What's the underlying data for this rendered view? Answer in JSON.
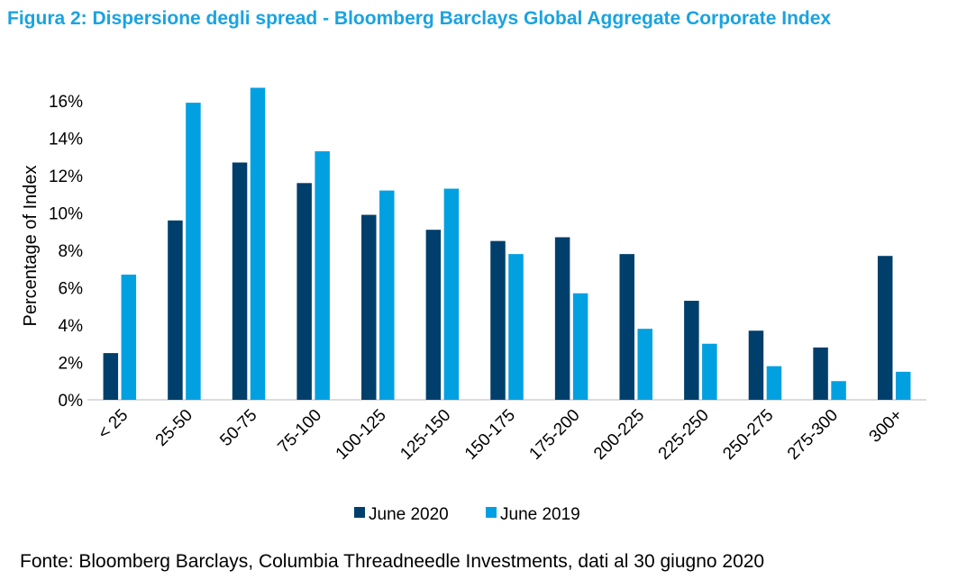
{
  "title": "Figura 2: Dispersione degli spread - Bloomberg Barclays Global Aggregate Corporate Index",
  "source": "Fonte: Bloomberg Barclays, Columbia Threadneedle Investments, dati al 30 giugno 2020",
  "chart_data": {
    "type": "bar",
    "ylabel": "Percentage of Index",
    "xlabel": "",
    "ylim": [
      0,
      16
    ],
    "y_ticks": [
      "0%",
      "2%",
      "4%",
      "6%",
      "8%",
      "10%",
      "12%",
      "14%",
      "16%"
    ],
    "y_tick_values": [
      0,
      2,
      4,
      6,
      8,
      10,
      12,
      14,
      16
    ],
    "categories": [
      "< 25",
      "25-50",
      "50-75",
      "75-100",
      "100-125",
      "125-150",
      "150-175",
      "175-200",
      "200-225",
      "225-250",
      "250-275",
      "275-300",
      "300+"
    ],
    "series": [
      {
        "name": "June 2020",
        "color": "#003f6b",
        "values": [
          2.5,
          9.6,
          12.7,
          11.6,
          9.9,
          9.1,
          8.5,
          8.7,
          7.8,
          5.3,
          3.7,
          2.8,
          7.7
        ]
      },
      {
        "name": "June 2019",
        "color": "#00a0e1",
        "values": [
          6.7,
          15.9,
          16.7,
          13.3,
          11.2,
          11.3,
          7.8,
          5.7,
          3.8,
          3.0,
          1.8,
          1.0,
          1.5
        ]
      }
    ],
    "legend_position": "bottom",
    "grid": false
  }
}
